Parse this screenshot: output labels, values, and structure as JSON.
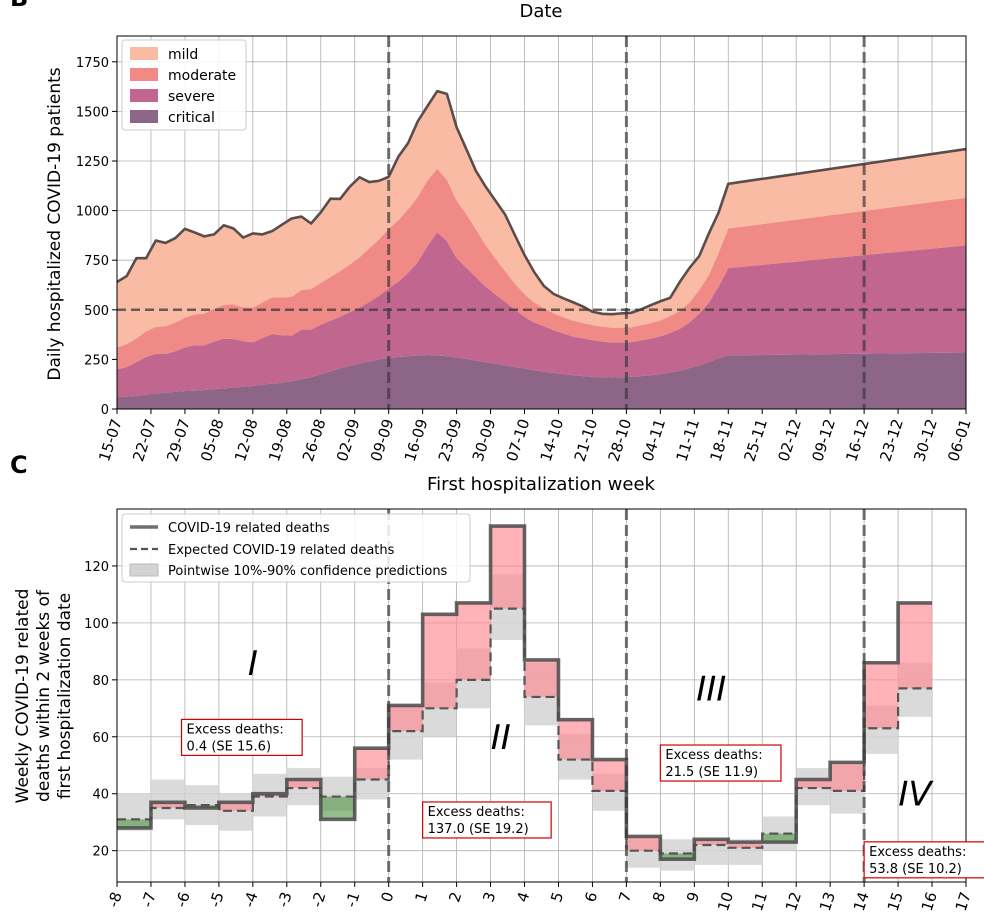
{
  "panel_b": {
    "letter": "B",
    "top_label": "Date",
    "chart_data": {
      "type": "area",
      "stacked": true,
      "ylabel": "Daily hospitalized COVID-19 patients",
      "xlabel": "Date",
      "ylim": [
        0,
        1880
      ],
      "yticks": [
        0,
        250,
        500,
        750,
        1000,
        1250,
        1500,
        1750
      ],
      "xtick_labels": [
        "15-07",
        "22-07",
        "29-07",
        "05-08",
        "12-08",
        "19-08",
        "26-08",
        "02-09",
        "09-09",
        "16-09",
        "23-09",
        "30-09",
        "07-10",
        "14-10",
        "21-10",
        "28-10",
        "04-11",
        "11-11",
        "18-11",
        "25-11",
        "02-12",
        "09-12",
        "16-12",
        "23-12",
        "30-12",
        "06-01"
      ],
      "vlines_at_tick": [
        8,
        15,
        22
      ],
      "hline": 500,
      "legend_position": "upper-left",
      "grid": true,
      "sample_every_days": 2,
      "series": [
        {
          "name": "critical",
          "color": "#8c6587",
          "values": [
            60,
            62,
            66,
            72,
            78,
            82,
            86,
            90,
            92,
            96,
            100,
            104,
            108,
            112,
            116,
            122,
            128,
            132,
            140,
            150,
            160,
            175,
            190,
            205,
            218,
            230,
            240,
            250,
            258,
            262,
            266,
            270,
            272,
            270,
            266,
            260,
            252,
            244,
            236,
            228,
            220,
            212,
            204,
            196,
            188,
            182,
            176,
            170,
            166,
            162,
            160,
            158,
            160,
            162,
            166,
            170,
            176,
            184,
            194,
            206,
            220,
            236,
            256,
            270,
            285
          ]
        },
        {
          "name": "severe",
          "color": "#c0668f",
          "values": [
            140,
            150,
            170,
            190,
            200,
            195,
            205,
            220,
            230,
            225,
            240,
            250,
            245,
            230,
            220,
            235,
            250,
            240,
            230,
            250,
            240,
            250,
            255,
            260,
            270,
            280,
            300,
            320,
            350,
            380,
            420,
            470,
            550,
            620,
            580,
            500,
            460,
            420,
            380,
            350,
            320,
            290,
            260,
            240,
            230,
            215,
            205,
            195,
            190,
            185,
            180,
            178,
            176,
            175,
            180,
            185,
            190,
            200,
            210,
            230,
            260,
            300,
            360,
            440,
            540
          ]
        },
        {
          "name": "moderate",
          "color": "#f08a87",
          "values": [
            110,
            115,
            120,
            130,
            135,
            140,
            145,
            150,
            155,
            160,
            165,
            170,
            175,
            170,
            175,
            180,
            185,
            190,
            195,
            200,
            205,
            210,
            220,
            230,
            240,
            255,
            270,
            285,
            300,
            310,
            320,
            330,
            330,
            320,
            310,
            290,
            270,
            240,
            210,
            180,
            155,
            130,
            115,
            100,
            90,
            85,
            82,
            80,
            78,
            76,
            75,
            74,
            74,
            75,
            76,
            78,
            80,
            85,
            90,
            100,
            120,
            140,
            170,
            200,
            240
          ]
        },
        {
          "name": "mild",
          "color": "#f9bba3",
          "values": [
            330,
            343,
            404,
            368,
            436,
            420,
            425,
            448,
            413,
            389,
            375,
            402,
            382,
            352,
            374,
            343,
            334,
            367,
            395,
            370,
            330,
            356,
            395,
            364,
            393,
            403,
            334,
            295,
            262,
            320,
            334,
            380,
            375,
            392,
            432,
            370,
            328,
            295,
            294,
            292,
            285,
            245,
            197,
            154,
            112,
            98,
            95,
            93,
            83,
            67,
            65,
            68,
            72,
            73,
            80,
            90,
            97,
            91,
            146,
            175,
            170,
            209,
            204,
            225,
            245
          ]
        }
      ],
      "total_color": "#5a4d4a"
    }
  },
  "panel_c": {
    "letter": "C",
    "top_label": "First hospitalization week",
    "chart_data": {
      "type": "step",
      "ylabel_lines": [
        "Weekly COVID-19 related",
        "deaths within 2 weeks of",
        "first hospitalization date"
      ],
      "x_range": [
        -8,
        17
      ],
      "xtick_labels": [
        "-8",
        "-7",
        "-6",
        "-5",
        "-4",
        "-3",
        "-2",
        "-1",
        "0",
        "1",
        "2",
        "3",
        "4",
        "5",
        "6",
        "7",
        "8",
        "9",
        "10",
        "11",
        "12",
        "13",
        "14",
        "15",
        "16",
        "17"
      ],
      "ylim": [
        9,
        140
      ],
      "yticks": [
        20,
        40,
        60,
        80,
        100,
        120
      ],
      "vlines": [
        0,
        7,
        14
      ],
      "grid": true,
      "legend_position": "upper-left",
      "series": [
        {
          "name": "COVID-19 related deaths",
          "values": [
            28,
            37,
            35,
            37,
            40,
            45,
            31,
            56,
            71,
            103,
            107,
            134,
            87,
            66,
            52,
            25,
            17,
            24,
            23,
            23,
            45,
            51,
            86,
            107
          ]
        },
        {
          "name": "Expected COVID-19 related deaths",
          "values": [
            31,
            35,
            36,
            34,
            39,
            42,
            39,
            45,
            62,
            70,
            80,
            105,
            74,
            52,
            41,
            20,
            19,
            22,
            21,
            26,
            42,
            41,
            63,
            77
          ]
        },
        {
          "name": "Pointwise 10%-90% confidence predictions",
          "lo": [
            27,
            31,
            29,
            27,
            32,
            36,
            34,
            38,
            52,
            60,
            70,
            94,
            64,
            45,
            34,
            14,
            13,
            15,
            15,
            20,
            36,
            33,
            54,
            67
          ],
          "hi": [
            40,
            45,
            43,
            40,
            47,
            49,
            46,
            49,
            71,
            79,
            91,
            117,
            86,
            61,
            47,
            24,
            24,
            24,
            24,
            32,
            49,
            50,
            71,
            86
          ]
        }
      ],
      "colors": {
        "line": "#555555",
        "expected": "#555555",
        "ci": "#d3d3d3",
        "excess": "#ff8a93",
        "deficit": "#5a9a4e"
      },
      "period_labels": [
        {
          "text": "I",
          "x": -4,
          "y": 86
        },
        {
          "text": "II",
          "x": 3.3,
          "y": 60
        },
        {
          "text": "III",
          "x": 9.5,
          "y": 77
        },
        {
          "text": "IV",
          "x": 15.5,
          "y": 40
        }
      ],
      "excess_boxes": [
        {
          "lines": [
            "Excess deaths:",
            "0.4 (SE 15.6)"
          ],
          "x": -6.1,
          "y": 64
        },
        {
          "lines": [
            "Excess deaths:",
            "137.0 (SE 19.2)"
          ],
          "x": 1.0,
          "y": 35
        },
        {
          "lines": [
            "Excess deaths:",
            "21.5 (SE 11.9)"
          ],
          "x": 8.0,
          "y": 55
        },
        {
          "lines": [
            "Excess deaths:",
            "53.8 (SE 10.2)"
          ],
          "x": 14.0,
          "y": 21
        }
      ]
    }
  }
}
